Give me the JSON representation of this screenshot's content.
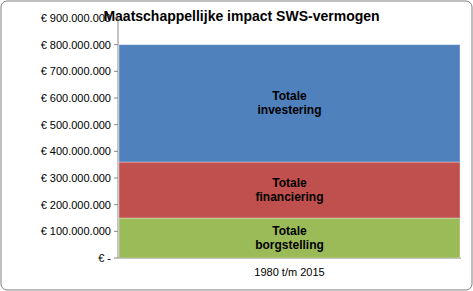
{
  "chart_data": {
    "type": "bar",
    "title": "Maatschappellijke impact SWS-vermogen",
    "categories": [
      "1980 t/m 2015"
    ],
    "stacked": true,
    "grid": false,
    "series": [
      {
        "name": "Totale borgstelling",
        "color": "#9bbb59",
        "values": [
          150000000
        ]
      },
      {
        "name": "Totale financiering",
        "color": "#c0504d",
        "values": [
          210000000
        ]
      },
      {
        "name": "Totale investering",
        "color": "#4f81bd",
        "values": [
          440000000
        ]
      }
    ],
    "ylim": [
      0,
      900000000
    ],
    "yticks": [
      {
        "value": 0,
        "label": "€ -"
      },
      {
        "value": 100000000,
        "label": "€ 100.000.000"
      },
      {
        "value": 200000000,
        "label": "€ 200.000.000"
      },
      {
        "value": 300000000,
        "label": "€ 300.000.000"
      },
      {
        "value": 400000000,
        "label": "€ 400.000.000"
      },
      {
        "value": 500000000,
        "label": "€ 500.000.000"
      },
      {
        "value": 600000000,
        "label": "€ 600.000.000"
      },
      {
        "value": 700000000,
        "label": "€ 700.000.000"
      },
      {
        "value": 800000000,
        "label": "€ 800.000.000"
      },
      {
        "value": 900000000,
        "label": "€ 900.000.000"
      }
    ]
  }
}
